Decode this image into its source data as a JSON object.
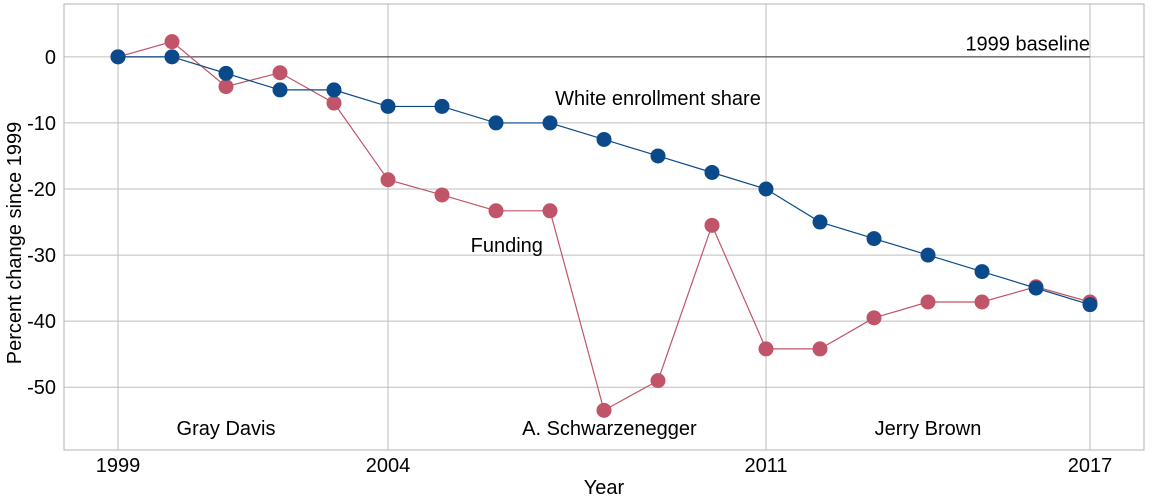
{
  "chart_data": {
    "type": "line",
    "title": "",
    "xlabel": "Year",
    "ylabel": "Percent change since 1999",
    "xlim": [
      1998,
      2018
    ],
    "ylim": [
      -59.5,
      8
    ],
    "x_ticks": [
      1999,
      2004,
      2011,
      2017
    ],
    "y_ticks": [
      0,
      -10,
      -20,
      -30,
      -40,
      -50
    ],
    "grid": true,
    "legend": "none",
    "baseline": {
      "y": 0,
      "x_start": 1999,
      "x_end": 2017,
      "label": "1999 baseline"
    },
    "series": [
      {
        "name": "White enrollment share",
        "color": "#0b4a8a",
        "x": [
          1999,
          2000,
          2001,
          2002,
          2003,
          2004,
          2005,
          2006,
          2007,
          2008,
          2009,
          2010,
          2011,
          2012,
          2013,
          2014,
          2015,
          2016,
          2017
        ],
        "values": [
          0,
          0,
          -2.5,
          -5,
          -5,
          -7.5,
          -7.5,
          -10,
          -10,
          -12.5,
          -15,
          -17.5,
          -20,
          -25,
          -27.5,
          -30,
          -32.5,
          -35,
          -37.5
        ]
      },
      {
        "name": "Funding",
        "color": "#c05468",
        "x": [
          1999,
          2000,
          2001,
          2002,
          2003,
          2004,
          2005,
          2006,
          2007,
          2008,
          2009,
          2010,
          2011,
          2012,
          2013,
          2014,
          2015,
          2016,
          2017
        ],
        "values": [
          0,
          2.3,
          -4.5,
          -2.4,
          -7,
          -18.6,
          -20.9,
          -23.3,
          -23.3,
          -53.5,
          -49,
          -25.5,
          -44.2,
          -44.2,
          -39.5,
          -37.1,
          -37.1,
          -34.8,
          -37.1
        ]
      }
    ],
    "annotations": [
      {
        "text": "White enrollment share",
        "x": 2009,
        "y": -6.2,
        "anchor": "middle"
      },
      {
        "text": "Funding",
        "x": 2006.2,
        "y": -28.5,
        "anchor": "middle"
      },
      {
        "text": "Gray Davis",
        "x": 2001,
        "y": -56.2,
        "anchor": "middle"
      },
      {
        "text": "A. Schwarzenegger",
        "x": 2008.1,
        "y": -56.2,
        "anchor": "middle"
      },
      {
        "text": "Jerry Brown",
        "x": 2014,
        "y": -56.2,
        "anchor": "middle"
      },
      {
        "text": "1999 baseline",
        "x": 2017,
        "y": 2,
        "anchor": "end"
      }
    ]
  }
}
